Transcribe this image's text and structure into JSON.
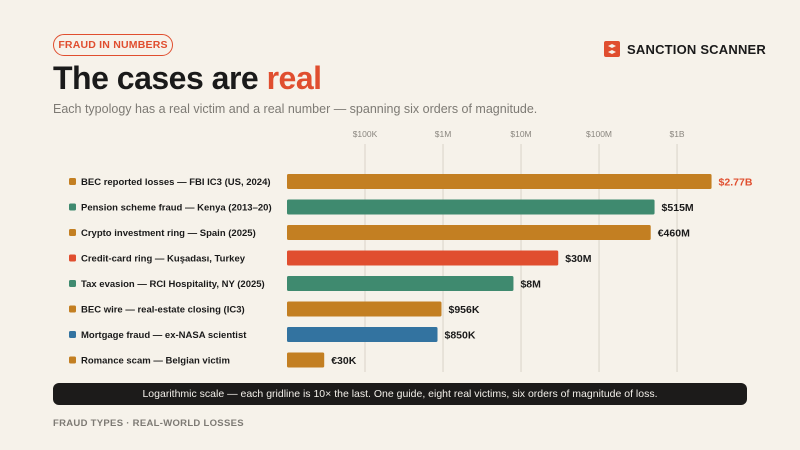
{
  "badge": "FRAUD IN NUMBERS",
  "brand": {
    "name": "SANCTION SCANNER",
    "icon": "sanction-scanner-logo-icon",
    "color": "#e04e2f"
  },
  "title": {
    "main": "The cases are ",
    "accent": "real"
  },
  "subtitle": "Each typology has a real victim and a real number — spanning six orders of magnitude.",
  "footnote": "Logarithmic scale — each gridline is 10× the last. One guide, eight real victims, six orders of magnitude of loss.",
  "footer": "FRAUD TYPES · REAL-WORLD LOSSES",
  "colors": {
    "accent": "#e04e2f",
    "ochre": "#c37f22",
    "teal": "#3f8a6f",
    "red": "#e04e2f",
    "blue": "#3373a0"
  },
  "chart_data": {
    "type": "bar",
    "orientation": "horizontal",
    "scale": "log",
    "xlim": [
      10000,
      4000000000
    ],
    "ticks": [
      {
        "value": 100000,
        "label": "$100K"
      },
      {
        "value": 1000000,
        "label": "$1M"
      },
      {
        "value": 10000000,
        "label": "$10M"
      },
      {
        "value": 100000000,
        "label": "$100M"
      },
      {
        "value": 1000000000,
        "label": "$1B"
      }
    ],
    "grid": true,
    "bars": [
      {
        "category": "BEC reported losses — FBI IC3 (US, 2024)",
        "value": 2770000000,
        "label": "$2.77B",
        "color": "#c37f22",
        "highlight": true
      },
      {
        "category": "Pension scheme fraud — Kenya (2013–20)",
        "value": 515000000,
        "label": "$515M",
        "color": "#3f8a6f"
      },
      {
        "category": "Crypto investment ring — Spain (2025)",
        "value": 460000000,
        "label": "€460M",
        "color": "#c37f22"
      },
      {
        "category": "Credit-card ring — Kuşadası, Turkey",
        "value": 30000000,
        "label": "$30M",
        "color": "#e04e2f"
      },
      {
        "category": "Tax evasion — RCI Hospitality, NY (2025)",
        "value": 8000000,
        "label": "$8M",
        "color": "#3f8a6f"
      },
      {
        "category": "BEC wire — real-estate closing (IC3)",
        "value": 956000,
        "label": "$956K",
        "color": "#c37f22"
      },
      {
        "category": "Mortgage fraud — ex-NASA scientist",
        "value": 850000,
        "label": "$850K",
        "color": "#3373a0"
      },
      {
        "category": "Romance scam — Belgian victim",
        "value": 30000,
        "label": "€30K",
        "color": "#c37f22"
      }
    ]
  }
}
